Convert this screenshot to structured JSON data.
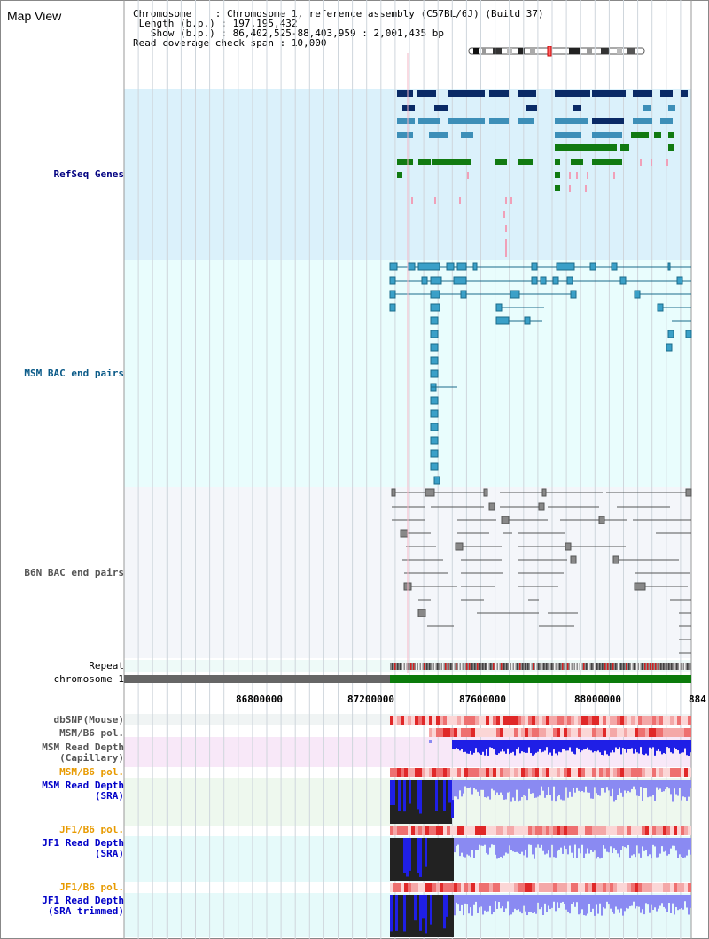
{
  "window": {
    "title": "Map View"
  },
  "info": {
    "chromosome_label": "Chromosome    :",
    "chromosome_value": "Chromosome 1, reference assembly (C57BL/6J) (Build 37)",
    "length_label": "Length (b.p.) :",
    "length_value": "197,195,432",
    "show_label": "Show (b.p.) :",
    "show_value": "86,402,525-88,403,959 : 2,001,435 bp",
    "read_label": "Read coverage check span :",
    "read_value": "10,000"
  },
  "tracks": {
    "refseq": "RefSeq Genes",
    "msm_bac": "MSM BAC end pairs",
    "b6n_bac": "B6N BAC end pairs",
    "repeat": "Repeat",
    "chromosome": "chromosome 1",
    "dbsnp": "dbSNP(Mouse)",
    "msm_pol_1": "MSM/B6 pol.",
    "msm_depth_cap_1": "MSM Read Depth",
    "msm_depth_cap_2": "(Capillary)",
    "msm_pol_2": "MSM/B6 pol.",
    "msm_depth_sra_1": "MSM Read Depth",
    "msm_depth_sra_2": "(SRA)",
    "jf1_pol_1": "JF1/B6 pol.",
    "jf1_depth_sra_1": "JF1 Read Depth",
    "jf1_depth_sra_2": "(SRA)",
    "jf1_pol_2": "JF1/B6 pol.",
    "jf1_depth_trim_1": "JF1 Read Depth",
    "jf1_depth_trim_2": "(SRA trimmed)"
  },
  "axis": {
    "ticks": [
      "86800000",
      "87200000",
      "87600000",
      "88000000",
      "884"
    ]
  },
  "colors": {
    "refseq_bg": "#dbf1fb",
    "msm_bac_bg": "#e9fdfd",
    "b6n_bac_bg": "#f4f6fa",
    "gene_dark": "#0a2a66",
    "gene_mid": "#3d8fb8",
    "gene_green": "#117a11",
    "chrom_gray": "#666666",
    "chrom_green": "#0b7b0b",
    "depth_blue": "#1f1fe6",
    "depth_light": "#8a8af2",
    "pol_red": "#e83a3a"
  }
}
